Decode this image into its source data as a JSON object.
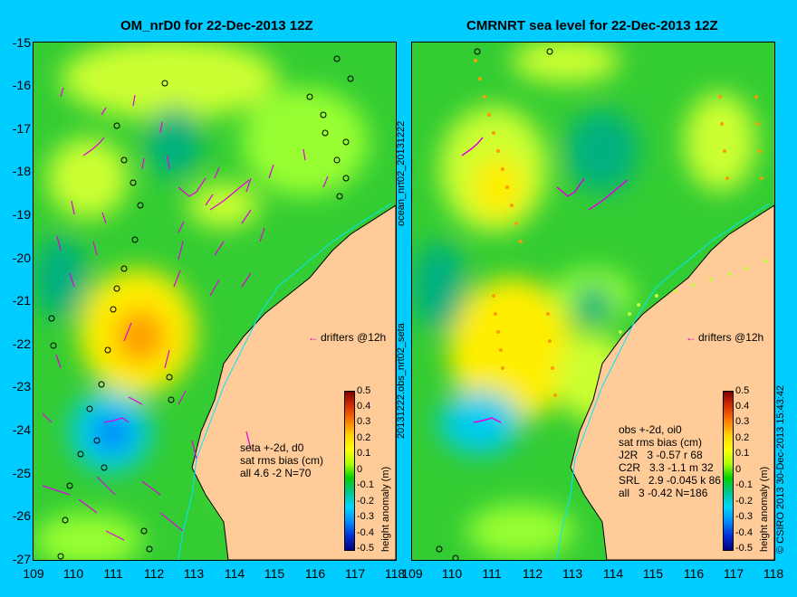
{
  "left_panel": {
    "title": "OM_nrD0 for 22-Dec-2013 12Z",
    "stats_lines": "seta +-2d, d0\nsat rms bias (cm)\nall 4.6 -2 N=70",
    "side_label": "ocean_nrt02_20131222"
  },
  "right_panel": {
    "title": "CMRNRT sea level  for 22-Dec-2013 12Z",
    "stats_lines": "obs +-2d, oi0\nsat rms bias (cm)\nJ2R   3 -0.57 r 68\nC2R   3.3 -1.1 m 32\nSRL   2.9 -0.045 k 86\nall   3 -0.42 N=186",
    "side_label": "20131222.obs_nrt02_seta"
  },
  "drifter_label": "drifters @12h",
  "colorbar": {
    "label": "height anomaly (m)",
    "ticks": [
      "0.5",
      "0.4",
      "0.3",
      "0.2",
      "0.1",
      "0",
      "-0.1",
      "-0.2",
      "-0.3",
      "-0.4",
      "-0.5"
    ]
  },
  "y_ticks": [
    "-15",
    "-16",
    "-17",
    "-18",
    "-19",
    "-20",
    "-21",
    "-22",
    "-23",
    "-24",
    "-25",
    "-26",
    "-27"
  ],
  "x_ticks": [
    "109",
    "110",
    "111",
    "112",
    "113",
    "114",
    "115",
    "116",
    "117",
    "118"
  ],
  "credit": "© CSIRO 2013   30-Dec-2013 15:43:42",
  "colors": {
    "background": "#00ccff",
    "land": "#ffcc99",
    "ocean_base": "#33cc33",
    "drifter": "#e000e0"
  }
}
